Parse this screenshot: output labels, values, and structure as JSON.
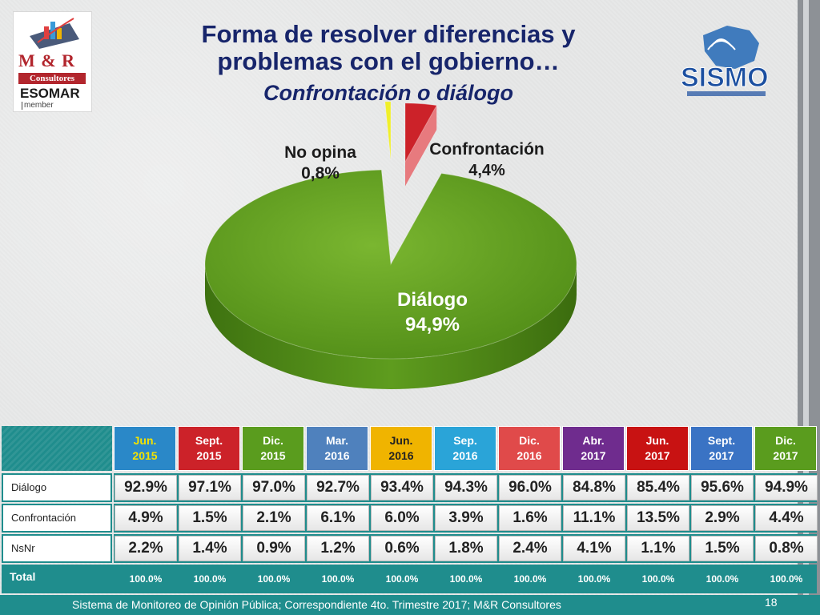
{
  "title_line1": "Forma de resolver diferencias y",
  "title_line2": "problemas con el gobierno…",
  "subtitle": "Confrontación o diálogo",
  "logo_mr": {
    "brand": "M & R",
    "tag": "Consultores",
    "esomar": "ESOMAR",
    "member": "member"
  },
  "logo_sismo": {
    "brand": "SISMO"
  },
  "colors": {
    "dialogo": "#5e9c1e",
    "confrontacion": "#cc2229",
    "no_opina": "#f0ef2a",
    "teal": "#1f8d8d"
  },
  "chart_data": {
    "type": "pie",
    "style": "3d",
    "slices": [
      {
        "label": "Diálogo",
        "value": 94.9,
        "display": "94,9%"
      },
      {
        "label": "Confrontación",
        "value": 4.4,
        "display": "4,4%"
      },
      {
        "label": "No opina",
        "value": 0.8,
        "display": "0,8%"
      }
    ]
  },
  "table": {
    "periods": [
      {
        "label": "Jun.\n2015",
        "bg": "#2a88c8",
        "color": "#f4e300"
      },
      {
        "label": "Sept.\n2015",
        "bg": "#cc2229",
        "color": "#ffffff"
      },
      {
        "label": "Dic.\n2015",
        "bg": "#5a9c1e",
        "color": "#ffffff"
      },
      {
        "label": "Mar.\n2016",
        "bg": "#4f81bd",
        "color": "#ffffff"
      },
      {
        "label": "Jun.\n2016",
        "bg": "#f0b400",
        "color": "#222222"
      },
      {
        "label": "Sep.\n2016",
        "bg": "#2aa4d8",
        "color": "#ffffff"
      },
      {
        "label": "Dic.\n2016",
        "bg": "#e04a4a",
        "color": "#ffffff"
      },
      {
        "label": "Abr.\n2017",
        "bg": "#6f2c8e",
        "color": "#ffffff"
      },
      {
        "label": "Jun.\n2017",
        "bg": "#c81212",
        "color": "#ffffff"
      },
      {
        "label": "Sept.\n2017",
        "bg": "#3a73c4",
        "color": "#ffffff"
      },
      {
        "label": "Dic.\n2017",
        "bg": "#5a9c1e",
        "color": "#ffffff"
      }
    ],
    "rows": [
      {
        "label": "Diálogo",
        "values": [
          "92.9%",
          "97.1%",
          "97.0%",
          "92.7%",
          "93.4%",
          "94.3%",
          "96.0%",
          "84.8%",
          "85.4%",
          "95.6%",
          "94.9%"
        ]
      },
      {
        "label": "Confrontación",
        "values": [
          "4.9%",
          "1.5%",
          "2.1%",
          "6.1%",
          "6.0%",
          "3.9%",
          "1.6%",
          "11.1%",
          "13.5%",
          "2.9%",
          "4.4%"
        ]
      },
      {
        "label": "NsNr",
        "values": [
          "2.2%",
          "1.4%",
          "0.9%",
          "1.2%",
          "0.6%",
          "1.8%",
          "2.4%",
          "4.1%",
          "1.1%",
          "1.5%",
          "0.8%"
        ]
      }
    ],
    "total_label": "Total",
    "total_values": [
      "100.0%",
      "100.0%",
      "100.0%",
      "100.0%",
      "100.0%",
      "100.0%",
      "100.0%",
      "100.0%",
      "100.0%",
      "100.0%",
      "100.0%"
    ]
  },
  "footer": "Sistema de Monitoreo de Opinión Pública; Correspondiente 4to. Trimestre 2017; M&R Consultores",
  "page_number": "18"
}
